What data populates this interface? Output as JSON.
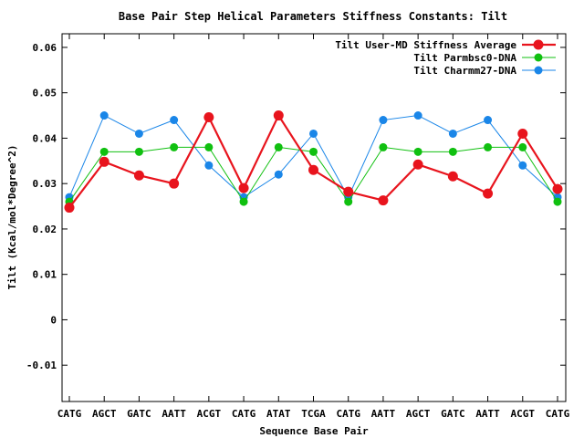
{
  "chart_data": {
    "type": "line",
    "title": "Base Pair Step Helical Parameters Stiffness Constants: Tilt",
    "xlabel": "Sequence Base Pair",
    "ylabel": "Tilt (Kcal/mol*Degree^2)",
    "categories": [
      "CATG",
      "AGCT",
      "GATC",
      "AATT",
      "ACGT",
      "CATG",
      "ATAT",
      "TCGA",
      "CATG",
      "AATT",
      "AGCT",
      "GATC",
      "AATT",
      "ACGT",
      "CATG"
    ],
    "ylim": [
      -0.018,
      0.063
    ],
    "yticks": [
      -0.01,
      0,
      0.01,
      0.02,
      0.03,
      0.04,
      0.05,
      0.06
    ],
    "ytick_labels": [
      "-0.01",
      "0",
      "0.01",
      "0.02",
      "0.03",
      "0.04",
      "0.05",
      "0.06"
    ],
    "grid": false,
    "legend_position": "top-right",
    "series": [
      {
        "name": "Tilt User-MD Stiffness Average",
        "color": "#e8141d",
        "values": [
          0.0247,
          0.0348,
          0.0318,
          0.03,
          0.0446,
          0.029,
          0.045,
          0.033,
          0.0282,
          0.0263,
          0.0342,
          0.0316,
          0.0278,
          0.041,
          0.0288
        ]
      },
      {
        "name": "Tilt Parmbsc0-DNA",
        "color": "#10c010",
        "values": [
          0.026,
          0.037,
          0.037,
          0.038,
          0.038,
          0.026,
          0.038,
          0.037,
          0.026,
          0.038,
          0.037,
          0.037,
          0.038,
          0.038,
          0.026
        ]
      },
      {
        "name": "Tilt Charmm27-DNA",
        "color": "#1a86e8",
        "values": [
          0.027,
          0.045,
          0.041,
          0.044,
          0.034,
          0.027,
          0.032,
          0.041,
          0.027,
          0.044,
          0.045,
          0.041,
          0.044,
          0.034,
          0.027
        ]
      }
    ]
  }
}
